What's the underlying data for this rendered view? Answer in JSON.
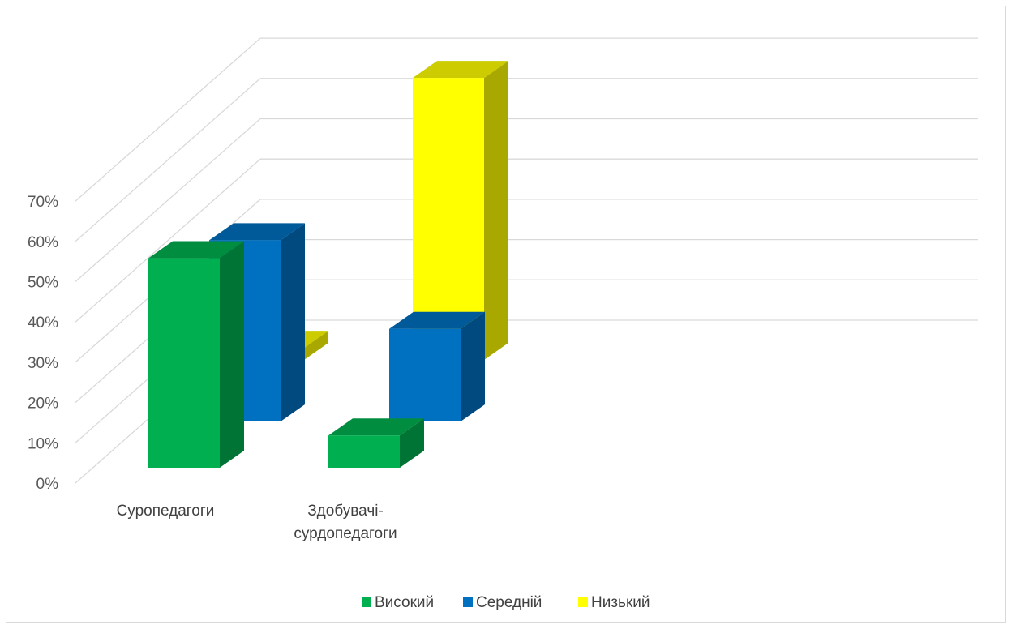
{
  "chart_data": {
    "type": "bar",
    "subtype": "3d-clustered-column",
    "title": "",
    "xlabel": "",
    "ylabel": "",
    "categories": [
      "Суропедагоги",
      "Здобувачі-\nсурдопедагоги"
    ],
    "series": [
      {
        "name": "Високий",
        "values": [
          52,
          8
        ],
        "color": "#00b050"
      },
      {
        "name": "Середній",
        "values": [
          45,
          23
        ],
        "color": "#0070c0"
      },
      {
        "name": "Низький",
        "values": [
          3,
          70
        ],
        "color": "#ffff00"
      }
    ],
    "ylim": [
      0,
      70
    ],
    "yticks": [
      "0%",
      "10%",
      "20%",
      "30%",
      "40%",
      "50%",
      "60%",
      "70%"
    ],
    "y_unit": "%",
    "grid": true,
    "legend": "bottom"
  }
}
